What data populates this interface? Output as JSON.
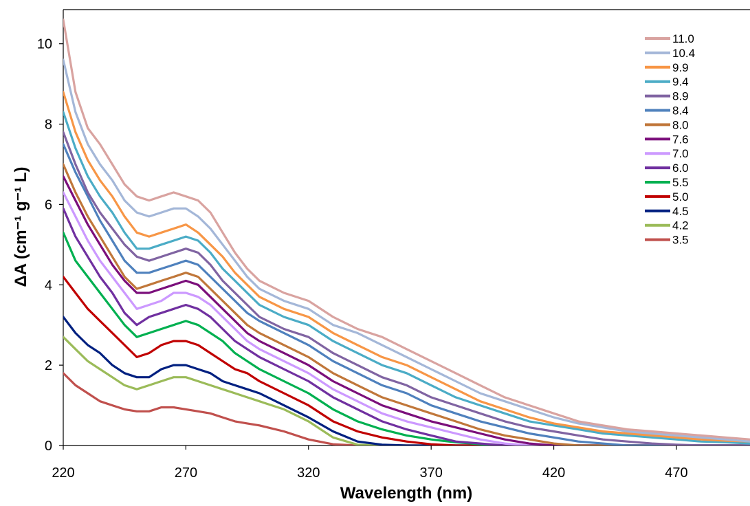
{
  "chart_data": {
    "type": "line",
    "title": "",
    "xlabel": "Wavelength (nm)",
    "ylabel": "ΔA (cm⁻¹ g⁻¹ L)",
    "xlim": [
      220,
      500
    ],
    "ylim": [
      0,
      11
    ],
    "x_ticks": [
      "220",
      "270",
      "320",
      "370",
      "420",
      "470"
    ],
    "y_ticks": [
      "0",
      "2",
      "4",
      "6",
      "8",
      "10"
    ],
    "grid": false,
    "legend_position": "top-right",
    "x": [
      220,
      225,
      230,
      235,
      240,
      245,
      250,
      255,
      260,
      265,
      270,
      275,
      280,
      285,
      290,
      295,
      300,
      310,
      320,
      330,
      340,
      350,
      360,
      370,
      380,
      390,
      400,
      410,
      420,
      430,
      440,
      450,
      460,
      470,
      480,
      490,
      500
    ],
    "series": [
      {
        "name": "11.0",
        "color": "#d9a3a0",
        "values": [
          10.6,
          8.8,
          7.9,
          7.5,
          7.0,
          6.5,
          6.2,
          6.1,
          6.2,
          6.3,
          6.2,
          6.1,
          5.8,
          5.3,
          4.8,
          4.4,
          4.1,
          3.8,
          3.6,
          3.2,
          2.9,
          2.7,
          2.4,
          2.1,
          1.8,
          1.5,
          1.2,
          1.0,
          0.8,
          0.6,
          0.5,
          0.4,
          0.35,
          0.3,
          0.25,
          0.2,
          0.15
        ]
      },
      {
        "name": "10.4",
        "color": "#a4b7d8",
        "values": [
          9.6,
          8.3,
          7.5,
          7.0,
          6.6,
          6.1,
          5.8,
          5.7,
          5.8,
          5.9,
          5.9,
          5.7,
          5.4,
          5.0,
          4.6,
          4.2,
          3.9,
          3.6,
          3.4,
          3.0,
          2.8,
          2.5,
          2.2,
          1.9,
          1.6,
          1.3,
          1.1,
          0.9,
          0.7,
          0.55,
          0.45,
          0.35,
          0.3,
          0.25,
          0.2,
          0.15,
          0.1
        ]
      },
      {
        "name": "9.9",
        "color": "#f79646",
        "values": [
          8.8,
          7.8,
          7.1,
          6.6,
          6.2,
          5.7,
          5.3,
          5.2,
          5.3,
          5.4,
          5.5,
          5.3,
          5.0,
          4.7,
          4.3,
          4.0,
          3.7,
          3.4,
          3.2,
          2.8,
          2.5,
          2.2,
          2.0,
          1.7,
          1.4,
          1.1,
          0.9,
          0.7,
          0.55,
          0.45,
          0.35,
          0.3,
          0.25,
          0.2,
          0.15,
          0.12,
          0.1
        ]
      },
      {
        "name": "9.4",
        "color": "#4bacc6",
        "values": [
          8.3,
          7.4,
          6.7,
          6.2,
          5.8,
          5.3,
          4.9,
          4.9,
          5.0,
          5.1,
          5.2,
          5.1,
          4.8,
          4.4,
          4.1,
          3.8,
          3.5,
          3.2,
          3.0,
          2.6,
          2.3,
          2.0,
          1.8,
          1.5,
          1.2,
          1.0,
          0.8,
          0.6,
          0.5,
          0.4,
          0.3,
          0.25,
          0.2,
          0.15,
          0.1,
          0.08,
          0.05
        ]
      },
      {
        "name": "8.9",
        "color": "#8064a2",
        "values": [
          7.8,
          7.0,
          6.3,
          5.8,
          5.4,
          5.0,
          4.7,
          4.6,
          4.7,
          4.8,
          4.9,
          4.8,
          4.5,
          4.1,
          3.8,
          3.5,
          3.2,
          2.9,
          2.7,
          2.3,
          2.0,
          1.7,
          1.5,
          1.2,
          1.0,
          0.8,
          0.6,
          0.45,
          0.35,
          0.25,
          0.15,
          0.1,
          0.05,
          0.02,
          0.0,
          0.0,
          0.0
        ]
      },
      {
        "name": "8.4",
        "color": "#4f81bd",
        "values": [
          7.5,
          6.8,
          6.2,
          5.6,
          5.1,
          4.6,
          4.3,
          4.3,
          4.4,
          4.5,
          4.6,
          4.5,
          4.2,
          3.9,
          3.6,
          3.3,
          3.1,
          2.8,
          2.5,
          2.1,
          1.8,
          1.5,
          1.3,
          1.0,
          0.8,
          0.6,
          0.45,
          0.3,
          0.2,
          0.1,
          0.05,
          0.0,
          0.0,
          0.0,
          0.0,
          0.0,
          0.0
        ]
      },
      {
        "name": "8.0",
        "color": "#c0773a",
        "values": [
          7.0,
          6.3,
          5.7,
          5.2,
          4.7,
          4.2,
          3.9,
          4.0,
          4.1,
          4.2,
          4.3,
          4.2,
          3.9,
          3.6,
          3.3,
          3.0,
          2.8,
          2.5,
          2.2,
          1.8,
          1.5,
          1.2,
          1.0,
          0.8,
          0.6,
          0.4,
          0.25,
          0.15,
          0.05,
          0.0,
          0.0,
          0.0,
          0.0,
          0.0,
          0.0,
          0.0,
          0.0
        ]
      },
      {
        "name": "7.6",
        "color": "#7b0f7b",
        "values": [
          6.7,
          6.1,
          5.5,
          5.0,
          4.5,
          4.1,
          3.8,
          3.8,
          3.9,
          4.0,
          4.1,
          4.0,
          3.7,
          3.4,
          3.1,
          2.8,
          2.6,
          2.3,
          2.0,
          1.6,
          1.3,
          1.0,
          0.8,
          0.6,
          0.45,
          0.3,
          0.15,
          0.05,
          0.0,
          0.0,
          0.0,
          0.0,
          0.0,
          0.0,
          0.0,
          0.0,
          0.0
        ]
      },
      {
        "name": "7.0",
        "color": "#cc99ff",
        "values": [
          6.3,
          5.7,
          5.1,
          4.6,
          4.2,
          3.8,
          3.4,
          3.5,
          3.6,
          3.8,
          3.8,
          3.7,
          3.5,
          3.2,
          2.9,
          2.6,
          2.4,
          2.1,
          1.8,
          1.4,
          1.1,
          0.8,
          0.6,
          0.45,
          0.3,
          0.15,
          0.05,
          0.0,
          0.0,
          0.0,
          0.0,
          0.0,
          0.0,
          0.0,
          0.0,
          0.0,
          0.0
        ]
      },
      {
        "name": "6.0",
        "color": "#7030a0",
        "values": [
          5.9,
          5.2,
          4.7,
          4.2,
          3.8,
          3.3,
          3.0,
          3.2,
          3.3,
          3.4,
          3.5,
          3.4,
          3.2,
          2.9,
          2.6,
          2.4,
          2.2,
          1.9,
          1.6,
          1.2,
          0.9,
          0.6,
          0.4,
          0.25,
          0.1,
          0.05,
          0.0,
          0.0,
          0.0,
          0.0,
          0.0,
          0.0,
          0.0,
          0.0,
          0.0,
          0.0,
          0.0
        ]
      },
      {
        "name": "5.5",
        "color": "#00b050",
        "values": [
          5.3,
          4.6,
          4.2,
          3.8,
          3.4,
          3.0,
          2.7,
          2.8,
          2.9,
          3.0,
          3.1,
          3.0,
          2.8,
          2.6,
          2.3,
          2.1,
          1.9,
          1.6,
          1.3,
          0.9,
          0.6,
          0.4,
          0.25,
          0.15,
          0.08,
          0.03,
          0.0,
          0.0,
          0.0,
          0.0,
          0.0,
          0.0,
          0.0,
          0.0,
          0.0,
          0.0,
          0.0
        ]
      },
      {
        "name": "5.0",
        "color": "#c00000",
        "values": [
          4.2,
          3.8,
          3.4,
          3.1,
          2.8,
          2.5,
          2.2,
          2.3,
          2.5,
          2.6,
          2.6,
          2.5,
          2.3,
          2.1,
          1.9,
          1.8,
          1.6,
          1.3,
          1.0,
          0.6,
          0.35,
          0.2,
          0.1,
          0.03,
          0.0,
          0.0,
          0.0,
          0.0,
          0.0,
          0.0,
          0.0,
          0.0,
          0.0,
          0.0,
          0.0,
          0.0,
          0.0
        ]
      },
      {
        "name": "4.5",
        "color": "#002080",
        "values": [
          3.2,
          2.8,
          2.5,
          2.3,
          2.0,
          1.8,
          1.7,
          1.7,
          1.9,
          2.0,
          2.0,
          1.9,
          1.8,
          1.6,
          1.5,
          1.4,
          1.3,
          1.0,
          0.7,
          0.35,
          0.1,
          0.02,
          0.0,
          0.0,
          0.0,
          0.0,
          0.0,
          0.0,
          0.0,
          0.0,
          0.0,
          0.0,
          0.0,
          0.0,
          0.0,
          0.0,
          0.0
        ]
      },
      {
        "name": "4.2",
        "color": "#9bbb59",
        "values": [
          2.7,
          2.4,
          2.1,
          1.9,
          1.7,
          1.5,
          1.4,
          1.5,
          1.6,
          1.7,
          1.7,
          1.6,
          1.5,
          1.4,
          1.3,
          1.2,
          1.1,
          0.9,
          0.6,
          0.2,
          0.02,
          0.0,
          0.0,
          0.0,
          0.0,
          0.0,
          0.0,
          0.0,
          0.0,
          0.0,
          0.0,
          0.0,
          0.0,
          0.0,
          0.0,
          0.0,
          0.0
        ]
      },
      {
        "name": "3.5",
        "color": "#c0504d",
        "values": [
          1.8,
          1.5,
          1.3,
          1.1,
          1.0,
          0.9,
          0.85,
          0.85,
          0.95,
          0.95,
          0.9,
          0.85,
          0.8,
          0.7,
          0.6,
          0.55,
          0.5,
          0.35,
          0.15,
          0.03,
          0.0,
          0.0,
          0.0,
          0.0,
          0.0,
          0.0,
          0.0,
          0.0,
          0.0,
          0.0,
          0.0,
          0.0,
          0.0,
          0.0,
          0.0,
          0.0,
          0.0
        ]
      }
    ]
  }
}
